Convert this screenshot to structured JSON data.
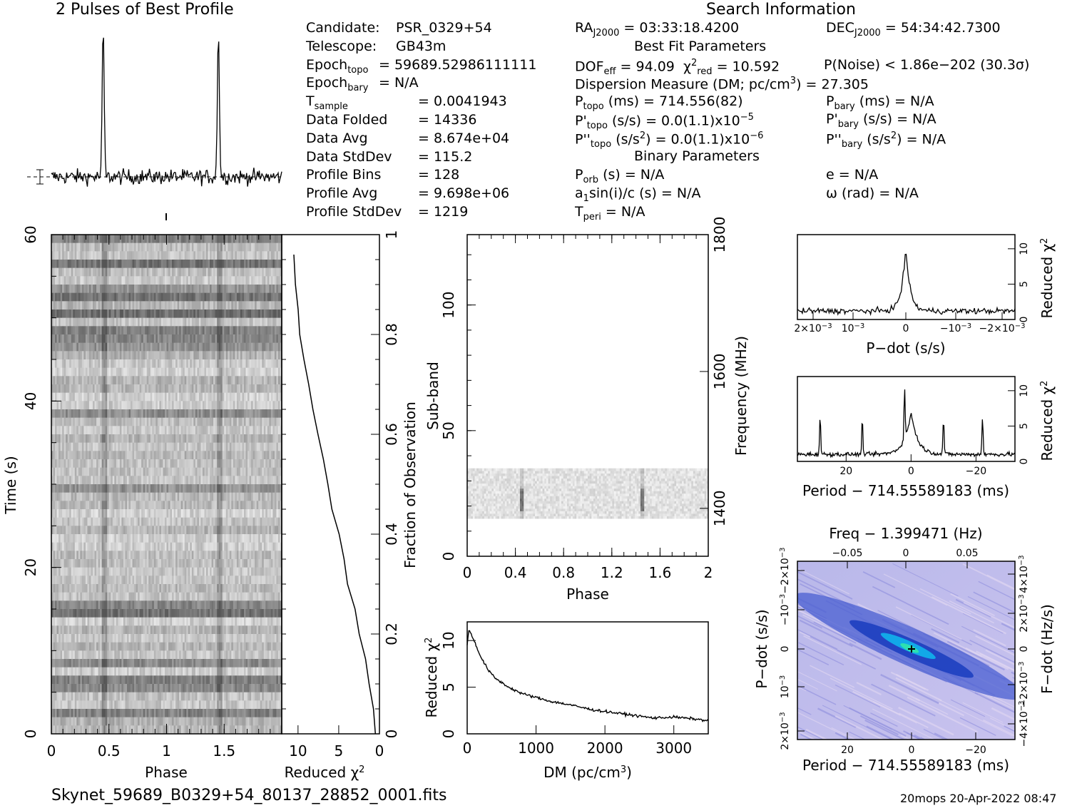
{
  "profile_title": "2 Pulses of Best Profile",
  "search_title": "Search Information",
  "best_fit_title": "Best Fit Parameters",
  "binary_title": "Binary Parameters",
  "file_label": "Skynet_59689_B0329+54_80137_28852_0001.fits",
  "footer_stamp": "20mops 20-Apr-2022 08:47",
  "info_left": [
    {
      "label": "Candidate:",
      "value": "PSR_0329+54"
    },
    {
      "label": "Telescope:",
      "value": "GB43m"
    },
    {
      "label": "Epoch",
      "sub": "topo",
      "value": "= 59689.52986111111"
    },
    {
      "label": "Epoch",
      "sub": "bary",
      "value": "= N/A"
    },
    {
      "label": "T",
      "sub": "sample",
      "value": "=    0.0041943"
    },
    {
      "label": "Data Folded",
      "value": "=    14336"
    },
    {
      "label": "Data Avg",
      "value": "=    8.674e+04"
    },
    {
      "label": "Data StdDev",
      "value": "=    115.2"
    },
    {
      "label": "Profile Bins",
      "value": "=    128"
    },
    {
      "label": "Profile Avg",
      "value": "=    9.698e+06"
    },
    {
      "label": "Profile StdDev",
      "value": "=    1219"
    }
  ],
  "info_mid": {
    "ra": "= 03:33:18.4200",
    "dec": "= 54:34:42.7300",
    "dof": "= 94.09",
    "chi2": "= 10.592",
    "pnoise": "P(Noise) < 1.86e−202  (30.3σ)",
    "dm": "Dispersion Measure (DM; pc/cm",
    "dm_val": ") = 27.305",
    "ptopo": "(ms) =  714.556(82)",
    "pbary": "(ms) = N/A",
    "pdtopo": "(s/s) = 0.0(1.1)x10",
    "pdtopo_exp": "−5",
    "pdbary": "(s/s) = N/A",
    "pddtopo": "(s/s",
    "pddtopo2": ") = 0.0(1.1)x10",
    "pddtopo_exp": "−6",
    "pddbary": "(s/s",
    "pddbary2": ") = N/A",
    "porb": "(s) = N/A",
    "e": "e = N/A",
    "a1": "a",
    "a1rest": "sin(i)/c (s) = N/A",
    "omega": "ω (rad) = N/A",
    "tperi": "= N/A"
  },
  "chart_data": [
    {
      "type": "line",
      "name": "profile",
      "title": "2 Pulses of Best Profile",
      "xlim": [
        0,
        2
      ],
      "peaks": [
        0.45,
        1.45
      ]
    },
    {
      "type": "heatmap",
      "name": "time-phase",
      "xlabel": "Phase",
      "ylabel": "Time (s)",
      "xlim": [
        0,
        2
      ],
      "ylim": [
        0,
        60
      ],
      "xticks": [
        "0",
        "0.5",
        "1",
        "1.5"
      ],
      "yticks": [
        "0",
        "20",
        "40",
        "60"
      ]
    },
    {
      "type": "line",
      "name": "reduced-chi2-vs-time",
      "xlabel": "Reduced χ",
      "ylabel": "Fraction of Observation",
      "xlim": [
        12,
        0
      ],
      "ylim": [
        0,
        1
      ],
      "xticks": [
        "10",
        "5",
        "0"
      ],
      "yticks": [
        "0",
        "0.2",
        "0.4",
        "0.6",
        "0.8",
        "1"
      ],
      "x": [
        0.5,
        0.8,
        1.2,
        1.8,
        2.4,
        3.0,
        3.8,
        4.4,
        5.0,
        5.8,
        6.4,
        7.0,
        7.6,
        8.2,
        8.8,
        9.2,
        9.6,
        10.0,
        10.3,
        10.6
      ],
      "y": [
        0.0,
        0.05,
        0.1,
        0.15,
        0.2,
        0.25,
        0.3,
        0.35,
        0.4,
        0.45,
        0.5,
        0.55,
        0.6,
        0.65,
        0.7,
        0.75,
        0.8,
        0.85,
        0.9,
        0.96
      ]
    },
    {
      "type": "heatmap",
      "name": "subband-phase",
      "xlabel": "Phase",
      "ylabel": "Sub-band",
      "y2label": "Frequency (MHz)",
      "xlim": [
        0,
        2
      ],
      "ylim": [
        0,
        128
      ],
      "xticks": [
        "0",
        "0.4",
        "0.8",
        "1.2",
        "1.6",
        "2"
      ],
      "yticks": [
        "0",
        "50",
        "100"
      ],
      "y2ticks": [
        "1400",
        "1600",
        "1800"
      ],
      "band": [
        15,
        35
      ]
    },
    {
      "type": "line",
      "name": "reduced-chi2-vs-dm",
      "xlabel": "DM (pc/cm",
      "ylabel": "Reduced χ",
      "xlim": [
        0,
        3500
      ],
      "ylim": [
        0,
        12
      ],
      "xticks": [
        "0",
        "1000",
        "2000",
        "3000"
      ],
      "yticks": [
        "0",
        "5",
        "10"
      ],
      "x": [
        0,
        27,
        100,
        200,
        300,
        400,
        600,
        800,
        1000,
        1200,
        1500,
        1800,
        2100,
        2400,
        2700,
        3000,
        3300,
        3500
      ],
      "y": [
        9.5,
        11.2,
        10.0,
        8.2,
        6.9,
        6.0,
        5.0,
        4.3,
        3.9,
        3.5,
        3.1,
        2.6,
        2.3,
        2.0,
        1.7,
        1.8,
        1.6,
        1.4
      ]
    },
    {
      "type": "line",
      "name": "reduced-chi2-vs-pdot",
      "xlabel": "P−dot (s/s)",
      "ylabel": "Reduced χ",
      "xlim": [
        0.0025,
        -0.0025
      ],
      "ylim": [
        0,
        12
      ],
      "xticks": [
        "2×10",
        "10",
        "0",
        "−10",
        "−2×10"
      ],
      "yticks": [
        "0",
        "5",
        "10"
      ]
    },
    {
      "type": "line",
      "name": "reduced-chi2-vs-period",
      "xlabel": "Period − 714.55589183 (ms)",
      "ylabel": "Reduced χ",
      "xlim": [
        35,
        -32
      ],
      "ylim": [
        0,
        12
      ],
      "xticks": [
        "20",
        "0",
        "−20"
      ],
      "yticks": [
        "0",
        "5",
        "10"
      ],
      "spikes": [
        28,
        15,
        2,
        0,
        -10,
        -22
      ]
    },
    {
      "type": "heatmap",
      "name": "period-pdot",
      "title": "Freq − 1.399471 (Hz)",
      "xlabel": "Period − 714.55589183 (ms)",
      "ylabel": "P−dot (s/s)",
      "y2label": "F−dot (Hz/s)",
      "xticks": [
        "20",
        "0",
        "−20"
      ],
      "x2ticks": [
        "−0.05",
        "0",
        "0.05"
      ],
      "yticks": [
        "2×10",
        "10",
        "0",
        "−10",
        "−2×10"
      ],
      "y2ticks": [
        "−4×10",
        "−2×10",
        "0",
        "2×10",
        "4×10"
      ]
    }
  ]
}
